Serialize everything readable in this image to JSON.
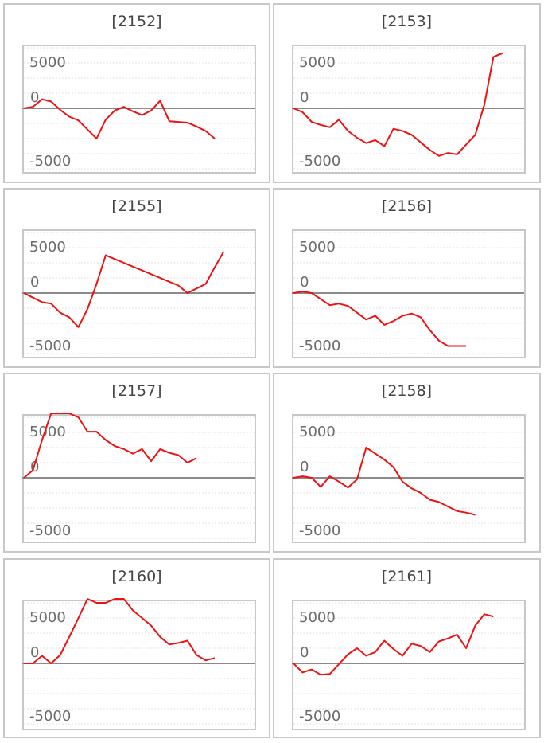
{
  "colors": {
    "series": "#ee1111",
    "grid": "#e0e0e0",
    "zero_line": "#8a8a8a",
    "border": "#c8c8c8",
    "tick_text": "#6b6b6b",
    "title_text": "#444444"
  },
  "chart_data": [
    {
      "type": "line",
      "title": "[2152]",
      "ylim": [
        -7000,
        7000
      ],
      "yticks": [
        5000,
        0,
        -5000
      ],
      "grid": true,
      "series": [
        {
          "values": [
            0,
            200,
            1200,
            900,
            -200,
            -1100,
            -1600,
            -2800,
            -4000,
            -1500,
            -300,
            200,
            -400,
            -900,
            -300,
            1000,
            -1700,
            -1800,
            -1900,
            -2400,
            -3000,
            -4000
          ]
        }
      ]
    },
    {
      "type": "line",
      "title": "[2153]",
      "ylim": [
        -7000,
        7000
      ],
      "yticks": [
        5000,
        0,
        -5000
      ],
      "grid": true,
      "series": [
        {
          "values": [
            0,
            -500,
            -1800,
            -2200,
            -2500,
            -1500,
            -3000,
            -3900,
            -4600,
            -4200,
            -5000,
            -2700,
            -3000,
            -3500,
            -4500,
            -5500,
            -6300,
            -5900,
            -6100,
            -4800,
            -3500,
            500,
            6800,
            7300
          ]
        }
      ]
    },
    {
      "type": "line",
      "title": "[2155]",
      "ylim": [
        -7000,
        7000
      ],
      "yticks": [
        5000,
        0,
        -5000
      ],
      "grid": true,
      "series": [
        {
          "values": [
            0,
            -600,
            -1200,
            -1400,
            -2600,
            -3200,
            -4500,
            -2100,
            1200,
            5000,
            4500,
            4000,
            3500,
            3000,
            2500,
            2000,
            1500,
            1000,
            0,
            600,
            1200,
            3400,
            5500
          ]
        }
      ]
    },
    {
      "type": "line",
      "title": "[2156]",
      "ylim": [
        -7000,
        7000
      ],
      "yticks": [
        5000,
        0,
        -5000
      ],
      "grid": true,
      "series": [
        {
          "values": [
            0,
            200,
            0,
            -800,
            -1600,
            -1400,
            -1700,
            -2600,
            -3500,
            -3000,
            -4200,
            -3700,
            -3000,
            -2700,
            -3200,
            -4900,
            -6300,
            -7000,
            -7000,
            -7000
          ]
        }
      ]
    },
    {
      "type": "line",
      "title": "[2157]",
      "ylim": [
        -7000,
        7000
      ],
      "yticks": [
        5000,
        0,
        -5000
      ],
      "grid": true,
      "series": [
        {
          "values": [
            0,
            1000,
            5000,
            9000,
            8900,
            8800,
            8000,
            6100,
            6100,
            5000,
            4200,
            3800,
            3200,
            3800,
            2200,
            3800,
            3300,
            3000,
            2000,
            2600
          ]
        }
      ]
    },
    {
      "type": "line",
      "title": "[2158]",
      "ylim": [
        -7000,
        7000
      ],
      "yticks": [
        5000,
        0,
        -5000
      ],
      "grid": true,
      "series": [
        {
          "values": [
            0,
            200,
            0,
            -1200,
            200,
            -500,
            -1300,
            -200,
            4000,
            3200,
            2400,
            1400,
            -500,
            -1400,
            -2000,
            -2900,
            -3200,
            -3800,
            -4400,
            -4600,
            -4900
          ]
        }
      ]
    },
    {
      "type": "line",
      "title": "[2160]",
      "ylim": [
        -7000,
        7000
      ],
      "yticks": [
        5000,
        0,
        -5000
      ],
      "grid": true,
      "series": [
        {
          "values": [
            0,
            0,
            1000,
            0,
            1100,
            3500,
            6000,
            9200,
            8000,
            8000,
            9000,
            8800,
            7000,
            6000,
            5000,
            3500,
            2500,
            2700,
            3000,
            1100,
            400,
            700
          ]
        }
      ]
    },
    {
      "type": "line",
      "title": "[2161]",
      "ylim": [
        -7000,
        7000
      ],
      "yticks": [
        5000,
        0,
        -5000
      ],
      "grid": true,
      "series": [
        {
          "values": [
            0,
            -1200,
            -800,
            -1500,
            -1400,
            -100,
            1200,
            2000,
            1000,
            1500,
            3000,
            1900,
            1000,
            2600,
            2300,
            1500,
            2900,
            3300,
            3800,
            2000,
            5000,
            6500,
            6200
          ]
        }
      ]
    }
  ]
}
